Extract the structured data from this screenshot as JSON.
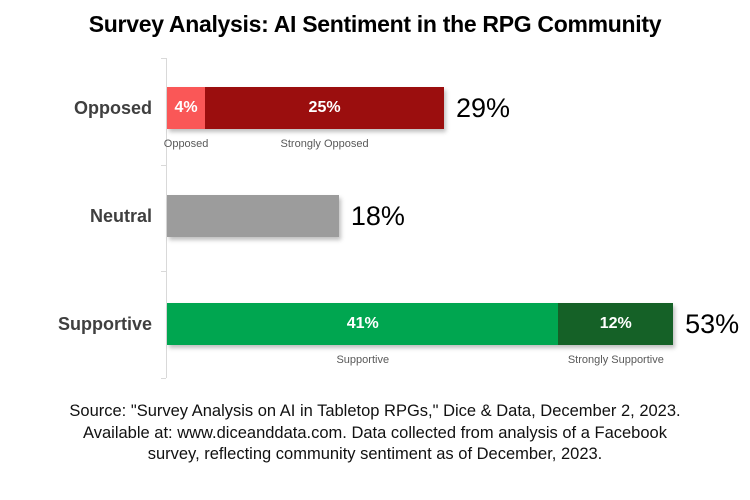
{
  "title": "Survey Analysis: AI Sentiment in the RPG Community",
  "chart_data": {
    "type": "bar",
    "orientation": "horizontal",
    "stacked": true,
    "x_unit": "percent",
    "xlim": [
      0,
      60
    ],
    "grid": false,
    "legend": "none",
    "axis_color": "#d9d9d9",
    "categories": [
      "Opposed",
      "Neutral",
      "Supportive"
    ],
    "rows": [
      {
        "category": "Opposed",
        "total": 29,
        "total_label": "29%",
        "segments": [
          {
            "name": "Opposed",
            "value": 4,
            "label": "4%",
            "color": "#fa5757",
            "show_sublabel": true
          },
          {
            "name": "Strongly Opposed",
            "value": 25,
            "label": "25%",
            "color": "#9b0e0e",
            "show_sublabel": true
          }
        ]
      },
      {
        "category": "Neutral",
        "total": 18,
        "total_label": "18%",
        "segments": [
          {
            "name": "Neutral",
            "value": 18,
            "label": "",
            "color": "#9c9c9c",
            "show_sublabel": false
          }
        ]
      },
      {
        "category": "Supportive",
        "total": 53,
        "total_label": "53%",
        "segments": [
          {
            "name": "Supportive",
            "value": 41,
            "label": "41%",
            "color": "#00a650",
            "show_sublabel": true
          },
          {
            "name": "Strongly Supportive",
            "value": 12,
            "label": "12%",
            "color": "#156127",
            "show_sublabel": true
          }
        ]
      }
    ]
  },
  "source": {
    "lines": [
      "Source: \"Survey Analysis on AI in Tabletop RPGs,\" Dice & Data, December 2, 2023.",
      "Available at: www.diceanddata.com. Data collected from analysis of a Facebook",
      "survey, reflecting community sentiment as of December, 2023."
    ]
  }
}
